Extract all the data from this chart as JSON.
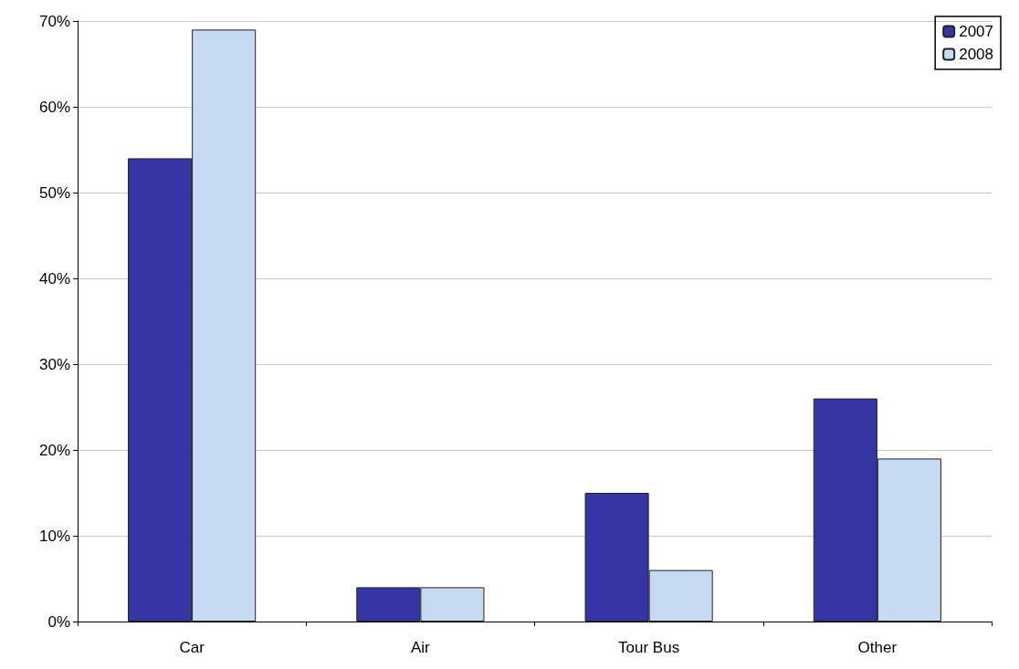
{
  "chart_data": {
    "type": "bar",
    "categories": [
      "Car",
      "Air",
      "Tour Bus",
      "Other"
    ],
    "series": [
      {
        "name": "2007",
        "color": "#3535a5",
        "values": [
          54,
          4,
          15,
          26
        ]
      },
      {
        "name": "2008",
        "color": "#c6daf2",
        "values": [
          69,
          4,
          6,
          19
        ]
      }
    ],
    "ylim": [
      0,
      70
    ],
    "yticks": [
      {
        "value": 0,
        "label": "0%"
      },
      {
        "value": 10,
        "label": "10%"
      },
      {
        "value": 20,
        "label": "20%"
      },
      {
        "value": 30,
        "label": "30%"
      },
      {
        "value": 40,
        "label": "40%"
      },
      {
        "value": 50,
        "label": "50%"
      },
      {
        "value": 60,
        "label": "60%"
      },
      {
        "value": 70,
        "label": "70%"
      }
    ],
    "grid": "y",
    "legend": "top right"
  }
}
